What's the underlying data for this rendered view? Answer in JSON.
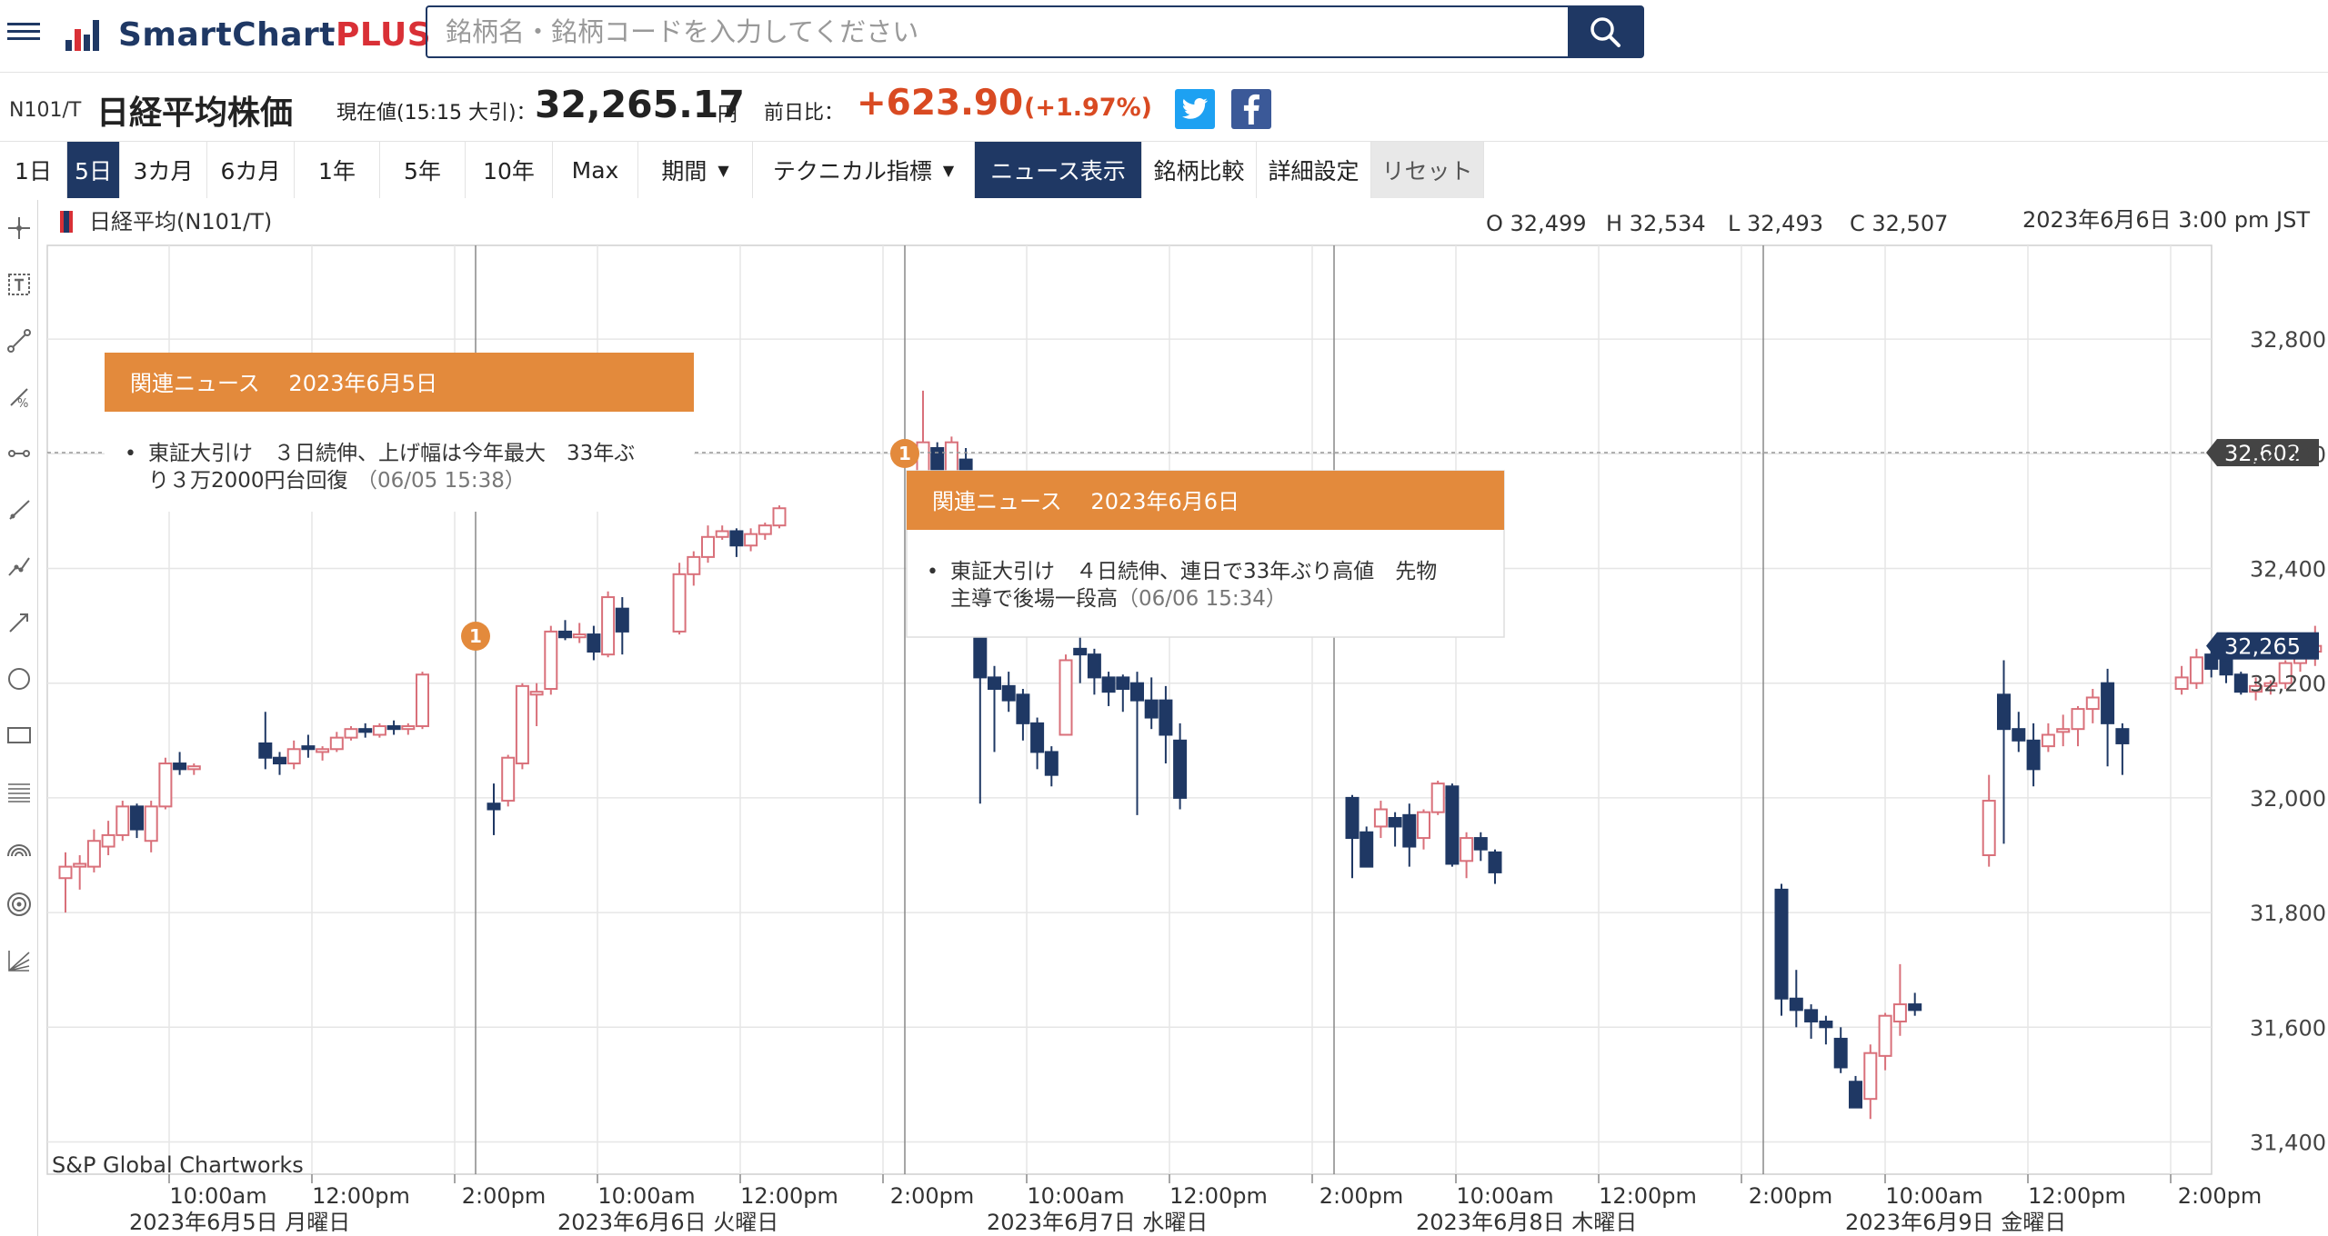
{
  "app": {
    "logo_text": "SmartChart",
    "logo_plus": "PLUS"
  },
  "search": {
    "placeholder": "銘柄名・銘柄コードを入力してください"
  },
  "quote": {
    "code": "N101/T",
    "name": "日経平均株価",
    "price_label": "現在値(15:15 大引)：",
    "price": "32,265.17",
    "unit": "円",
    "change_label": "前日比：",
    "change": "+623.90",
    "change_pct": "(+1.97%)"
  },
  "tabs": [
    "1日",
    "5日",
    "3カ月",
    "6カ月",
    "1年",
    "5年",
    "10年",
    "Max",
    "期間",
    "テクニカル指標",
    "ニュース表示",
    "銘柄比較",
    "詳細設定",
    "リセット"
  ],
  "selected_tabs": [
    "5日",
    "ニュース表示"
  ],
  "toolbar_icons": [
    "crosshair-icon",
    "text-tool-icon",
    "trend-line-icon",
    "percent-line-icon",
    "horizontal-line-icon",
    "ray-line-icon",
    "polyline-icon",
    "arrow-line-icon",
    "circle-tool-icon",
    "rectangle-tool-icon",
    "fib-retracement-icon",
    "arc-tool-icon",
    "concentric-circle-icon",
    "fan-tool-icon"
  ],
  "chart_data": {
    "type": "candlestick",
    "series_label": "日経平均(N101/T)",
    "ohlc_readout": {
      "o": "O 32,499",
      "h": "H 32,534",
      "l": "L 32,493",
      "c": "C 32,507"
    },
    "datetime": "2023年6月6日 3:00 pm JST",
    "credit": "S&P Global Chartworks",
    "ylim": [
      31370,
      32980
    ],
    "y_ticks": [
      {
        "v": 32800,
        "label": "32,800"
      },
      {
        "v": 32600,
        "label": "32,600"
      },
      {
        "v": 32400,
        "label": "32,400"
      },
      {
        "v": 32200,
        "label": "32,200"
      },
      {
        "v": 32000,
        "label": "32,000"
      },
      {
        "v": 31800,
        "label": "31,800"
      },
      {
        "v": 31600,
        "label": "31,600"
      },
      {
        "v": 31400,
        "label": "31,400"
      }
    ],
    "markers": [
      {
        "v": 32602,
        "label": "32,602",
        "style": "dashed"
      },
      {
        "v": 32265,
        "label": "32,265",
        "style": "last"
      }
    ],
    "x_time_ticks": [
      "10:00am",
      "12:00pm",
      "2:00pm",
      "10:00am",
      "12:00pm",
      "2:00pm",
      "10:00am",
      "12:00pm",
      "2:00pm",
      "10:00am",
      "12:00pm",
      "2:00pm",
      "10:00am",
      "12:00pm",
      "2:00pm"
    ],
    "x_day_labels": [
      "2023年6月5日 月曜日",
      "2023年6月6日 火曜日",
      "2023年6月7日 水曜日",
      "2023年6月8日 木曜日",
      "2023年6月9日 金曜日"
    ],
    "days": [
      {
        "date": "2023-06-05",
        "candles": [
          [
            31860,
            31905,
            31800,
            31880
          ],
          [
            31880,
            31900,
            31840,
            31885
          ],
          [
            31880,
            31945,
            31870,
            31925
          ],
          [
            31915,
            31960,
            31900,
            31935
          ],
          [
            31935,
            31995,
            31925,
            31985
          ],
          [
            31985,
            31990,
            31930,
            31945
          ],
          [
            31925,
            31995,
            31905,
            31985
          ],
          [
            31985,
            32070,
            31980,
            32060
          ],
          [
            32060,
            32080,
            32040,
            32050
          ],
          [
            32050,
            32060,
            32040,
            32055
          ],
          [
            32095,
            32150,
            32050,
            32070
          ],
          [
            32070,
            32080,
            32040,
            32060
          ],
          [
            32060,
            32100,
            32050,
            32085
          ],
          [
            32090,
            32110,
            32070,
            32085
          ],
          [
            32080,
            32090,
            32065,
            32085
          ],
          [
            32085,
            32115,
            32080,
            32105
          ],
          [
            32105,
            32125,
            32100,
            32120
          ],
          [
            32120,
            32130,
            32105,
            32115
          ],
          [
            32110,
            32130,
            32105,
            32125
          ],
          [
            32125,
            32135,
            32110,
            32120
          ],
          [
            32120,
            32130,
            32110,
            32125
          ],
          [
            32125,
            32220,
            32120,
            32215
          ]
        ]
      },
      {
        "date": "2023-06-06",
        "candles": [
          [
            31990,
            32025,
            31935,
            31980
          ],
          [
            31995,
            32075,
            31985,
            32070
          ],
          [
            32060,
            32200,
            32050,
            32195
          ],
          [
            32180,
            32200,
            32125,
            32185
          ],
          [
            32190,
            32300,
            32180,
            32290
          ],
          [
            32290,
            32310,
            32275,
            32280
          ],
          [
            32280,
            32305,
            32270,
            32285
          ],
          [
            32285,
            32300,
            32240,
            32255
          ],
          [
            32250,
            32360,
            32245,
            32350
          ],
          [
            32330,
            32350,
            32250,
            32290
          ],
          [
            32290,
            32410,
            32285,
            32390
          ],
          [
            32390,
            32430,
            32370,
            32420
          ],
          [
            32420,
            32475,
            32410,
            32455
          ],
          [
            32455,
            32475,
            32450,
            32465
          ],
          [
            32465,
            32470,
            32420,
            32440
          ],
          [
            32440,
            32470,
            32430,
            32460
          ],
          [
            32460,
            32480,
            32450,
            32475
          ],
          [
            32475,
            32510,
            32470,
            32505
          ]
        ]
      },
      {
        "date": "2023-06-07",
        "candles": [
          [
            32520,
            32710,
            32505,
            32620
          ],
          [
            32610,
            32620,
            32490,
            32505
          ],
          [
            32500,
            32630,
            32480,
            32620
          ],
          [
            32590,
            32610,
            32470,
            32490
          ],
          [
            32410,
            32420,
            31990,
            32210
          ],
          [
            32210,
            32230,
            32080,
            32190
          ],
          [
            32195,
            32220,
            32150,
            32170
          ],
          [
            32180,
            32190,
            32100,
            32130
          ],
          [
            32130,
            32140,
            32050,
            32080
          ],
          [
            32080,
            32090,
            32020,
            32040
          ],
          [
            32110,
            32250,
            32110,
            32240
          ],
          [
            32260,
            32290,
            32200,
            32250
          ],
          [
            32250,
            32260,
            32180,
            32210
          ],
          [
            32210,
            32220,
            32160,
            32185
          ],
          [
            32210,
            32215,
            32150,
            32190
          ],
          [
            32200,
            32220,
            31970,
            32170
          ],
          [
            32170,
            32210,
            32120,
            32140
          ],
          [
            32170,
            32195,
            32060,
            32110
          ],
          [
            32100,
            32130,
            31980,
            32000
          ]
        ]
      },
      {
        "date": "2023-06-08",
        "candles": [
          [
            32000,
            32005,
            31860,
            31930
          ],
          [
            31940,
            31950,
            31880,
            31880
          ],
          [
            31950,
            31995,
            31930,
            31980
          ],
          [
            31965,
            31975,
            31915,
            31950
          ],
          [
            31970,
            31990,
            31880,
            31915
          ],
          [
            31930,
            31980,
            31910,
            31975
          ],
          [
            31975,
            32030,
            31970,
            32025
          ],
          [
            32020,
            32025,
            31880,
            31885
          ],
          [
            31890,
            31940,
            31860,
            31930
          ],
          [
            31930,
            31940,
            31890,
            31910
          ],
          [
            31905,
            31910,
            31850,
            31870
          ]
        ]
      },
      {
        "date": "2023-06-09",
        "candles": [
          [
            31840,
            31850,
            31620,
            31650
          ],
          [
            31650,
            31700,
            31600,
            31630
          ],
          [
            31630,
            31640,
            31580,
            31610
          ],
          [
            31610,
            31620,
            31570,
            31600
          ],
          [
            31580,
            31600,
            31520,
            31530
          ],
          [
            31505,
            31515,
            31460,
            31460
          ],
          [
            31475,
            31570,
            31440,
            31555
          ],
          [
            31550,
            31625,
            31525,
            31620
          ],
          [
            31610,
            31710,
            31585,
            31640
          ],
          [
            31640,
            31660,
            31620,
            31630
          ],
          [
            31900,
            32040,
            31880,
            31995
          ],
          [
            32180,
            32240,
            31920,
            32120
          ],
          [
            32120,
            32150,
            32080,
            32100
          ],
          [
            32100,
            32130,
            32020,
            32050
          ],
          [
            32090,
            32130,
            32080,
            32110
          ],
          [
            32115,
            32145,
            32090,
            32120
          ],
          [
            32120,
            32160,
            32090,
            32155
          ],
          [
            32155,
            32190,
            32130,
            32175
          ],
          [
            32200,
            32225,
            32055,
            32130
          ],
          [
            32120,
            32130,
            32040,
            32095
          ],
          [
            32190,
            32230,
            32180,
            32210
          ],
          [
            32200,
            32260,
            32190,
            32245
          ],
          [
            32250,
            32265,
            32210,
            32225
          ],
          [
            32240,
            32250,
            32200,
            32215
          ],
          [
            32215,
            32220,
            32180,
            32185
          ],
          [
            32185,
            32210,
            32170,
            32195
          ],
          [
            32195,
            32205,
            32180,
            32200
          ],
          [
            32200,
            32240,
            32190,
            32235
          ],
          [
            32235,
            32275,
            32220,
            32265
          ],
          [
            32255,
            32300,
            32230,
            32265
          ]
        ]
      }
    ],
    "news": [
      {
        "index": "1",
        "time": "06/05 15:38"
      },
      {
        "index": "1",
        "time": "06/06 15:34"
      }
    ]
  },
  "news_popups": [
    {
      "header": "関連ニュース　 2023年6月5日",
      "bullet": "•",
      "line1": "東証大引け　３日続伸、上げ幅は今年最大　33年ぶ",
      "line2": "り３万2000円台回復",
      "time": "（06/05 15:38）"
    },
    {
      "header": "関連ニュース　 2023年6月6日",
      "bullet": "•",
      "line1": "東証大引け　４日続伸、連日で33年ぶり高値　先物",
      "line2": "主導で後場一段高",
      "time": "（06/06 15:34）"
    }
  ]
}
